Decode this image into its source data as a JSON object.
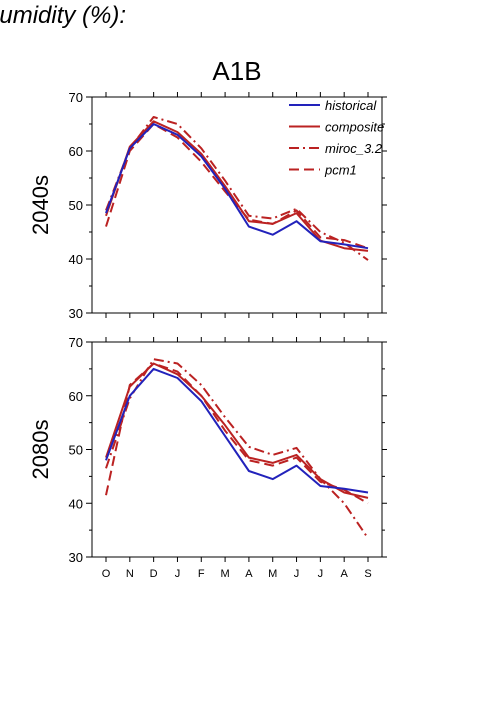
{
  "page": {
    "heading": "humidity (%):"
  },
  "chart_data": {
    "type": "line",
    "title": "A1B",
    "categories": [
      "O",
      "N",
      "D",
      "J",
      "F",
      "M",
      "A",
      "M",
      "J",
      "J",
      "A",
      "S"
    ],
    "legend": {
      "placement": "top-right",
      "entries": [
        {
          "name": "historical",
          "color": "#2222bb",
          "dash": "solid"
        },
        {
          "name": "composite",
          "color": "#bb2222",
          "dash": "solid"
        },
        {
          "name": "miroc_3.2",
          "color": "#bb2222",
          "dash": "dashdot"
        },
        {
          "name": "pcm1",
          "color": "#bb2222",
          "dash": "dashed"
        }
      ]
    },
    "panels": [
      {
        "label": "2040s",
        "ylim": [
          30,
          70
        ],
        "yticks": [
          30,
          40,
          50,
          60,
          70
        ],
        "series": [
          {
            "name": "historical",
            "values": [
              48.5,
              60.5,
              65.0,
              63.0,
              59.0,
              53.0,
              46.0,
              44.5,
              47.0,
              43.3,
              42.7,
              42.0
            ]
          },
          {
            "name": "composite",
            "values": [
              48.0,
              60.8,
              65.5,
              63.5,
              59.5,
              53.5,
              47.0,
              46.5,
              48.5,
              43.4,
              42.0,
              41.5
            ]
          },
          {
            "name": "miroc_3.2",
            "values": [
              49.0,
              60.5,
              66.3,
              65.0,
              60.5,
              54.5,
              48.0,
              47.5,
              49.3,
              45.0,
              43.0,
              39.8
            ]
          },
          {
            "name": "pcm1",
            "values": [
              46.0,
              60.0,
              65.0,
              62.5,
              58.0,
              52.5,
              47.3,
              46.5,
              49.0,
              44.0,
              43.5,
              42.0
            ]
          }
        ]
      },
      {
        "label": "2080s",
        "ylim": [
          30,
          70
        ],
        "yticks": [
          30,
          40,
          50,
          60,
          70
        ],
        "series": [
          {
            "name": "historical",
            "values": [
              48.0,
              60.0,
              65.0,
              63.3,
              59.0,
              52.5,
              46.0,
              44.5,
              47.0,
              43.2,
              42.7,
              42.0
            ]
          },
          {
            "name": "composite",
            "values": [
              48.5,
              61.7,
              66.0,
              64.0,
              60.0,
              54.5,
              48.5,
              47.5,
              49.0,
              44.5,
              42.0,
              41.0
            ]
          },
          {
            "name": "miroc_3.2",
            "values": [
              46.5,
              59.5,
              66.8,
              66.0,
              62.0,
              56.0,
              50.5,
              49.0,
              50.3,
              44.5,
              40.0,
              33.5
            ]
          },
          {
            "name": "pcm1",
            "values": [
              41.5,
              62.0,
              66.0,
              64.5,
              60.0,
              53.5,
              48.0,
              47.0,
              48.5,
              44.0,
              42.5,
              40.0
            ]
          }
        ]
      }
    ]
  }
}
